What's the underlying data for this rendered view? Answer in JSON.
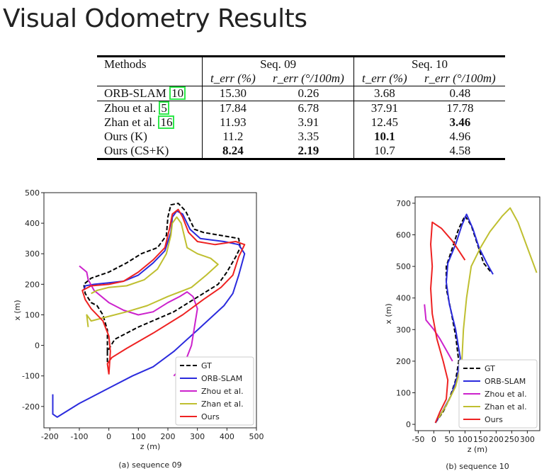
{
  "page": {
    "title": "Visual Odometry Results"
  },
  "table": {
    "group_headers": [
      "Methods",
      "Seq. 09",
      "Seq. 10"
    ],
    "metric_headers": [
      "t_err (%)",
      "r_err (°/100m)",
      "t_err (%)",
      "r_err (°/100m)"
    ],
    "rows": [
      {
        "method": "ORB-SLAM",
        "cite": "10",
        "values": [
          "15.30",
          "0.26",
          "3.68",
          "0.48"
        ]
      },
      {
        "method": "Zhou et al.",
        "cite": "5",
        "values": [
          "17.84",
          "6.78",
          "37.91",
          "17.78"
        ]
      },
      {
        "method": "Zhan et al.",
        "cite": "16",
        "values": [
          "11.93",
          "3.91",
          "12.45",
          "3.46"
        ]
      },
      {
        "method": "Ours (K)",
        "cite": "",
        "values": [
          "11.2",
          "3.35",
          "10.1",
          "4.96"
        ]
      },
      {
        "method": "Ours (CS+K)",
        "cite": "",
        "values": [
          "8.24",
          "2.19",
          "10.7",
          "4.58"
        ]
      }
    ]
  },
  "chart_data": [
    {
      "type": "line",
      "caption": "(a) sequence 09",
      "xlabel": "z (m)",
      "ylabel": "x (m)",
      "xlim": [
        -220,
        500
      ],
      "ylim": [
        -270,
        500
      ],
      "xticks": [
        -200,
        -100,
        0,
        100,
        200,
        300,
        400,
        500
      ],
      "yticks": [
        -200,
        -100,
        0,
        100,
        200,
        300,
        400,
        500
      ],
      "legend": [
        "GT",
        "ORB-SLAM",
        "Zhou et al.",
        "Zhan et al.",
        "Ours"
      ],
      "legend_position": "lower-right",
      "series": [
        {
          "name": "GT",
          "color": "#000000",
          "dash": true,
          "points": [
            [
              -5,
              -55
            ],
            [
              -5,
              -20
            ],
            [
              20,
              20
            ],
            [
              100,
              60
            ],
            [
              220,
              110
            ],
            [
              320,
              170
            ],
            [
              370,
              200
            ],
            [
              400,
              240
            ],
            [
              430,
              290
            ],
            [
              445,
              320
            ],
            [
              440,
              350
            ],
            [
              380,
              360
            ],
            [
              320,
              370
            ],
            [
              290,
              380
            ],
            [
              260,
              440
            ],
            [
              235,
              465
            ],
            [
              210,
              460
            ],
            [
              200,
              420
            ],
            [
              195,
              360
            ],
            [
              165,
              320
            ],
            [
              110,
              300
            ],
            [
              60,
              270
            ],
            [
              0,
              240
            ],
            [
              -60,
              220
            ],
            [
              -85,
              200
            ],
            [
              -80,
              170
            ],
            [
              -60,
              140
            ],
            [
              -40,
              130
            ],
            [
              -20,
              100
            ],
            [
              -5,
              50
            ],
            [
              -5,
              -20
            ]
          ]
        },
        {
          "name": "ORB-SLAM",
          "color": "#2b2bdd",
          "dash": false,
          "points": [
            [
              -190,
              -160
            ],
            [
              -190,
              -225
            ],
            [
              -175,
              -235
            ],
            [
              -100,
              -190
            ],
            [
              0,
              -140
            ],
            [
              80,
              -100
            ],
            [
              150,
              -70
            ],
            [
              220,
              -20
            ],
            [
              300,
              50
            ],
            [
              390,
              130
            ],
            [
              420,
              170
            ],
            [
              440,
              230
            ],
            [
              460,
              300
            ],
            [
              440,
              330
            ],
            [
              390,
              340
            ],
            [
              310,
              350
            ],
            [
              275,
              380
            ],
            [
              250,
              430
            ],
            [
              230,
              440
            ],
            [
              215,
              420
            ],
            [
              210,
              370
            ],
            [
              190,
              310
            ],
            [
              150,
              270
            ],
            [
              100,
              230
            ],
            [
              50,
              210
            ],
            [
              0,
              205
            ],
            [
              -50,
              200
            ],
            [
              -80,
              195
            ],
            [
              -85,
              180
            ]
          ]
        },
        {
          "name": "Zhou et al.",
          "color": "#cc22cc",
          "dash": false,
          "points": [
            [
              -100,
              260
            ],
            [
              -75,
              240
            ],
            [
              -70,
              215
            ],
            [
              -50,
              180
            ],
            [
              0,
              140
            ],
            [
              50,
              115
            ],
            [
              100,
              100
            ],
            [
              150,
              110
            ],
            [
              200,
              140
            ],
            [
              240,
              160
            ],
            [
              265,
              175
            ],
            [
              285,
              160
            ],
            [
              300,
              120
            ],
            [
              290,
              60
            ],
            [
              280,
              0
            ],
            [
              260,
              -50
            ],
            [
              240,
              -80
            ],
            [
              220,
              -100
            ]
          ]
        },
        {
          "name": "Zhan et al.",
          "color": "#bfbf30",
          "dash": false,
          "points": [
            [
              -70,
              60
            ],
            [
              -75,
              100
            ],
            [
              -60,
              80
            ],
            [
              0,
              95
            ],
            [
              60,
              110
            ],
            [
              130,
              130
            ],
            [
              200,
              160
            ],
            [
              280,
              190
            ],
            [
              330,
              230
            ],
            [
              370,
              265
            ],
            [
              345,
              285
            ],
            [
              300,
              300
            ],
            [
              265,
              320
            ],
            [
              245,
              400
            ],
            [
              230,
              420
            ],
            [
              215,
              400
            ],
            [
              210,
              360
            ],
            [
              195,
              300
            ],
            [
              165,
              250
            ],
            [
              120,
              215
            ],
            [
              60,
              195
            ],
            [
              0,
              190
            ],
            [
              -40,
              180
            ],
            [
              -60,
              170
            ]
          ]
        },
        {
          "name": "Ours",
          "color": "#ee2222",
          "dash": false,
          "points": [
            [
              0,
              -95
            ],
            [
              -5,
              -60
            ],
            [
              10,
              -40
            ],
            [
              60,
              -10
            ],
            [
              150,
              40
            ],
            [
              250,
              100
            ],
            [
              320,
              150
            ],
            [
              380,
              190
            ],
            [
              420,
              230
            ],
            [
              440,
              290
            ],
            [
              460,
              330
            ],
            [
              430,
              340
            ],
            [
              360,
              330
            ],
            [
              300,
              340
            ],
            [
              270,
              370
            ],
            [
              250,
              420
            ],
            [
              235,
              445
            ],
            [
              215,
              430
            ],
            [
              205,
              380
            ],
            [
              190,
              320
            ],
            [
              150,
              280
            ],
            [
              100,
              240
            ],
            [
              50,
              210
            ],
            [
              0,
              200
            ],
            [
              -60,
              195
            ],
            [
              -90,
              180
            ],
            [
              -80,
              150
            ],
            [
              -60,
              120
            ],
            [
              -20,
              80
            ],
            [
              0,
              30
            ],
            [
              5,
              -20
            ],
            [
              0,
              -95
            ]
          ]
        }
      ]
    },
    {
      "type": "line",
      "caption": "(b) sequence 10",
      "xlabel": "z (m)",
      "ylabel": "x (m)",
      "xlim": [
        -60,
        340
      ],
      "ylim": [
        -20,
        720
      ],
      "xticks": [
        -50,
        0,
        50,
        100,
        150,
        200,
        250,
        300
      ],
      "yticks": [
        0,
        100,
        200,
        300,
        400,
        500,
        600,
        700
      ],
      "legend": [
        "GT",
        "ORB-SLAM",
        "Zhou et al.",
        "Zhan et al.",
        "Ours"
      ],
      "legend_position": "lower-right",
      "series": [
        {
          "name": "GT",
          "color": "#000000",
          "dash": true,
          "points": [
            [
              5,
              5
            ],
            [
              30,
              40
            ],
            [
              50,
              80
            ],
            [
              70,
              140
            ],
            [
              80,
              200
            ],
            [
              70,
              280
            ],
            [
              55,
              360
            ],
            [
              40,
              430
            ],
            [
              40,
              500
            ],
            [
              60,
              560
            ],
            [
              80,
              620
            ],
            [
              100,
              660
            ],
            [
              120,
              630
            ],
            [
              140,
              570
            ],
            [
              160,
              510
            ],
            [
              185,
              480
            ]
          ]
        },
        {
          "name": "ORB-SLAM",
          "color": "#2b2bdd",
          "dash": false,
          "points": [
            [
              5,
              5
            ],
            [
              30,
              45
            ],
            [
              55,
              90
            ],
            [
              75,
              150
            ],
            [
              85,
              210
            ],
            [
              70,
              300
            ],
            [
              50,
              380
            ],
            [
              40,
              450
            ],
            [
              45,
              510
            ],
            [
              70,
              570
            ],
            [
              90,
              630
            ],
            [
              105,
              665
            ],
            [
              125,
              620
            ],
            [
              145,
              560
            ],
            [
              170,
              510
            ],
            [
              190,
              475
            ]
          ]
        },
        {
          "name": "Zhou et al.",
          "color": "#cc22cc",
          "dash": false,
          "points": [
            [
              -30,
              380
            ],
            [
              -25,
              330
            ],
            [
              0,
              300
            ],
            [
              20,
              270
            ],
            [
              40,
              235
            ],
            [
              60,
              200
            ]
          ]
        },
        {
          "name": "Zhan et al.",
          "color": "#bfbf30",
          "dash": false,
          "points": [
            [
              15,
              20
            ],
            [
              40,
              60
            ],
            [
              70,
              120
            ],
            [
              90,
              200
            ],
            [
              95,
              300
            ],
            [
              105,
              400
            ],
            [
              120,
              500
            ],
            [
              150,
              560
            ],
            [
              180,
              610
            ],
            [
              220,
              660
            ],
            [
              245,
              685
            ],
            [
              270,
              640
            ],
            [
              300,
              560
            ],
            [
              330,
              480
            ]
          ]
        },
        {
          "name": "Ours",
          "color": "#ee2222",
          "dash": false,
          "points": [
            [
              5,
              5
            ],
            [
              20,
              40
            ],
            [
              40,
              80
            ],
            [
              45,
              140
            ],
            [
              30,
              200
            ],
            [
              10,
              270
            ],
            [
              -5,
              350
            ],
            [
              -10,
              430
            ],
            [
              -5,
              500
            ],
            [
              -10,
              570
            ],
            [
              -5,
              640
            ],
            [
              25,
              620
            ],
            [
              60,
              580
            ],
            [
              100,
              520
            ]
          ]
        }
      ]
    }
  ]
}
